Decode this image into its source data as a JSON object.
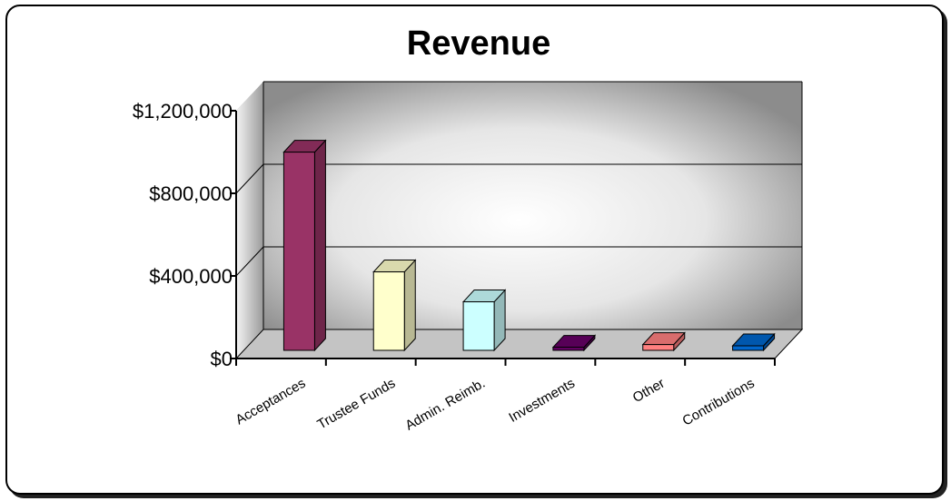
{
  "chart_data": {
    "type": "bar",
    "title": "Revenue",
    "xlabel": "",
    "ylabel": "",
    "categories": [
      "Acceptances",
      "Trustee Funds",
      "Admin. Reimb.",
      "Investments",
      "Other",
      "Contributions"
    ],
    "values": [
      960000,
      380000,
      235000,
      15000,
      28000,
      22000
    ],
    "yticks": [
      0,
      400000,
      800000,
      1200000
    ],
    "ytick_labels": [
      "$0",
      "$400,000",
      "$800,000",
      "$1,200,000"
    ],
    "ylim": [
      0,
      1200000
    ],
    "grid": true,
    "three_d": true,
    "legend": "none",
    "colors": [
      "#993366",
      "#FFFFCC",
      "#CCFFFF",
      "#660066",
      "#FF8080",
      "#0066CC"
    ]
  }
}
